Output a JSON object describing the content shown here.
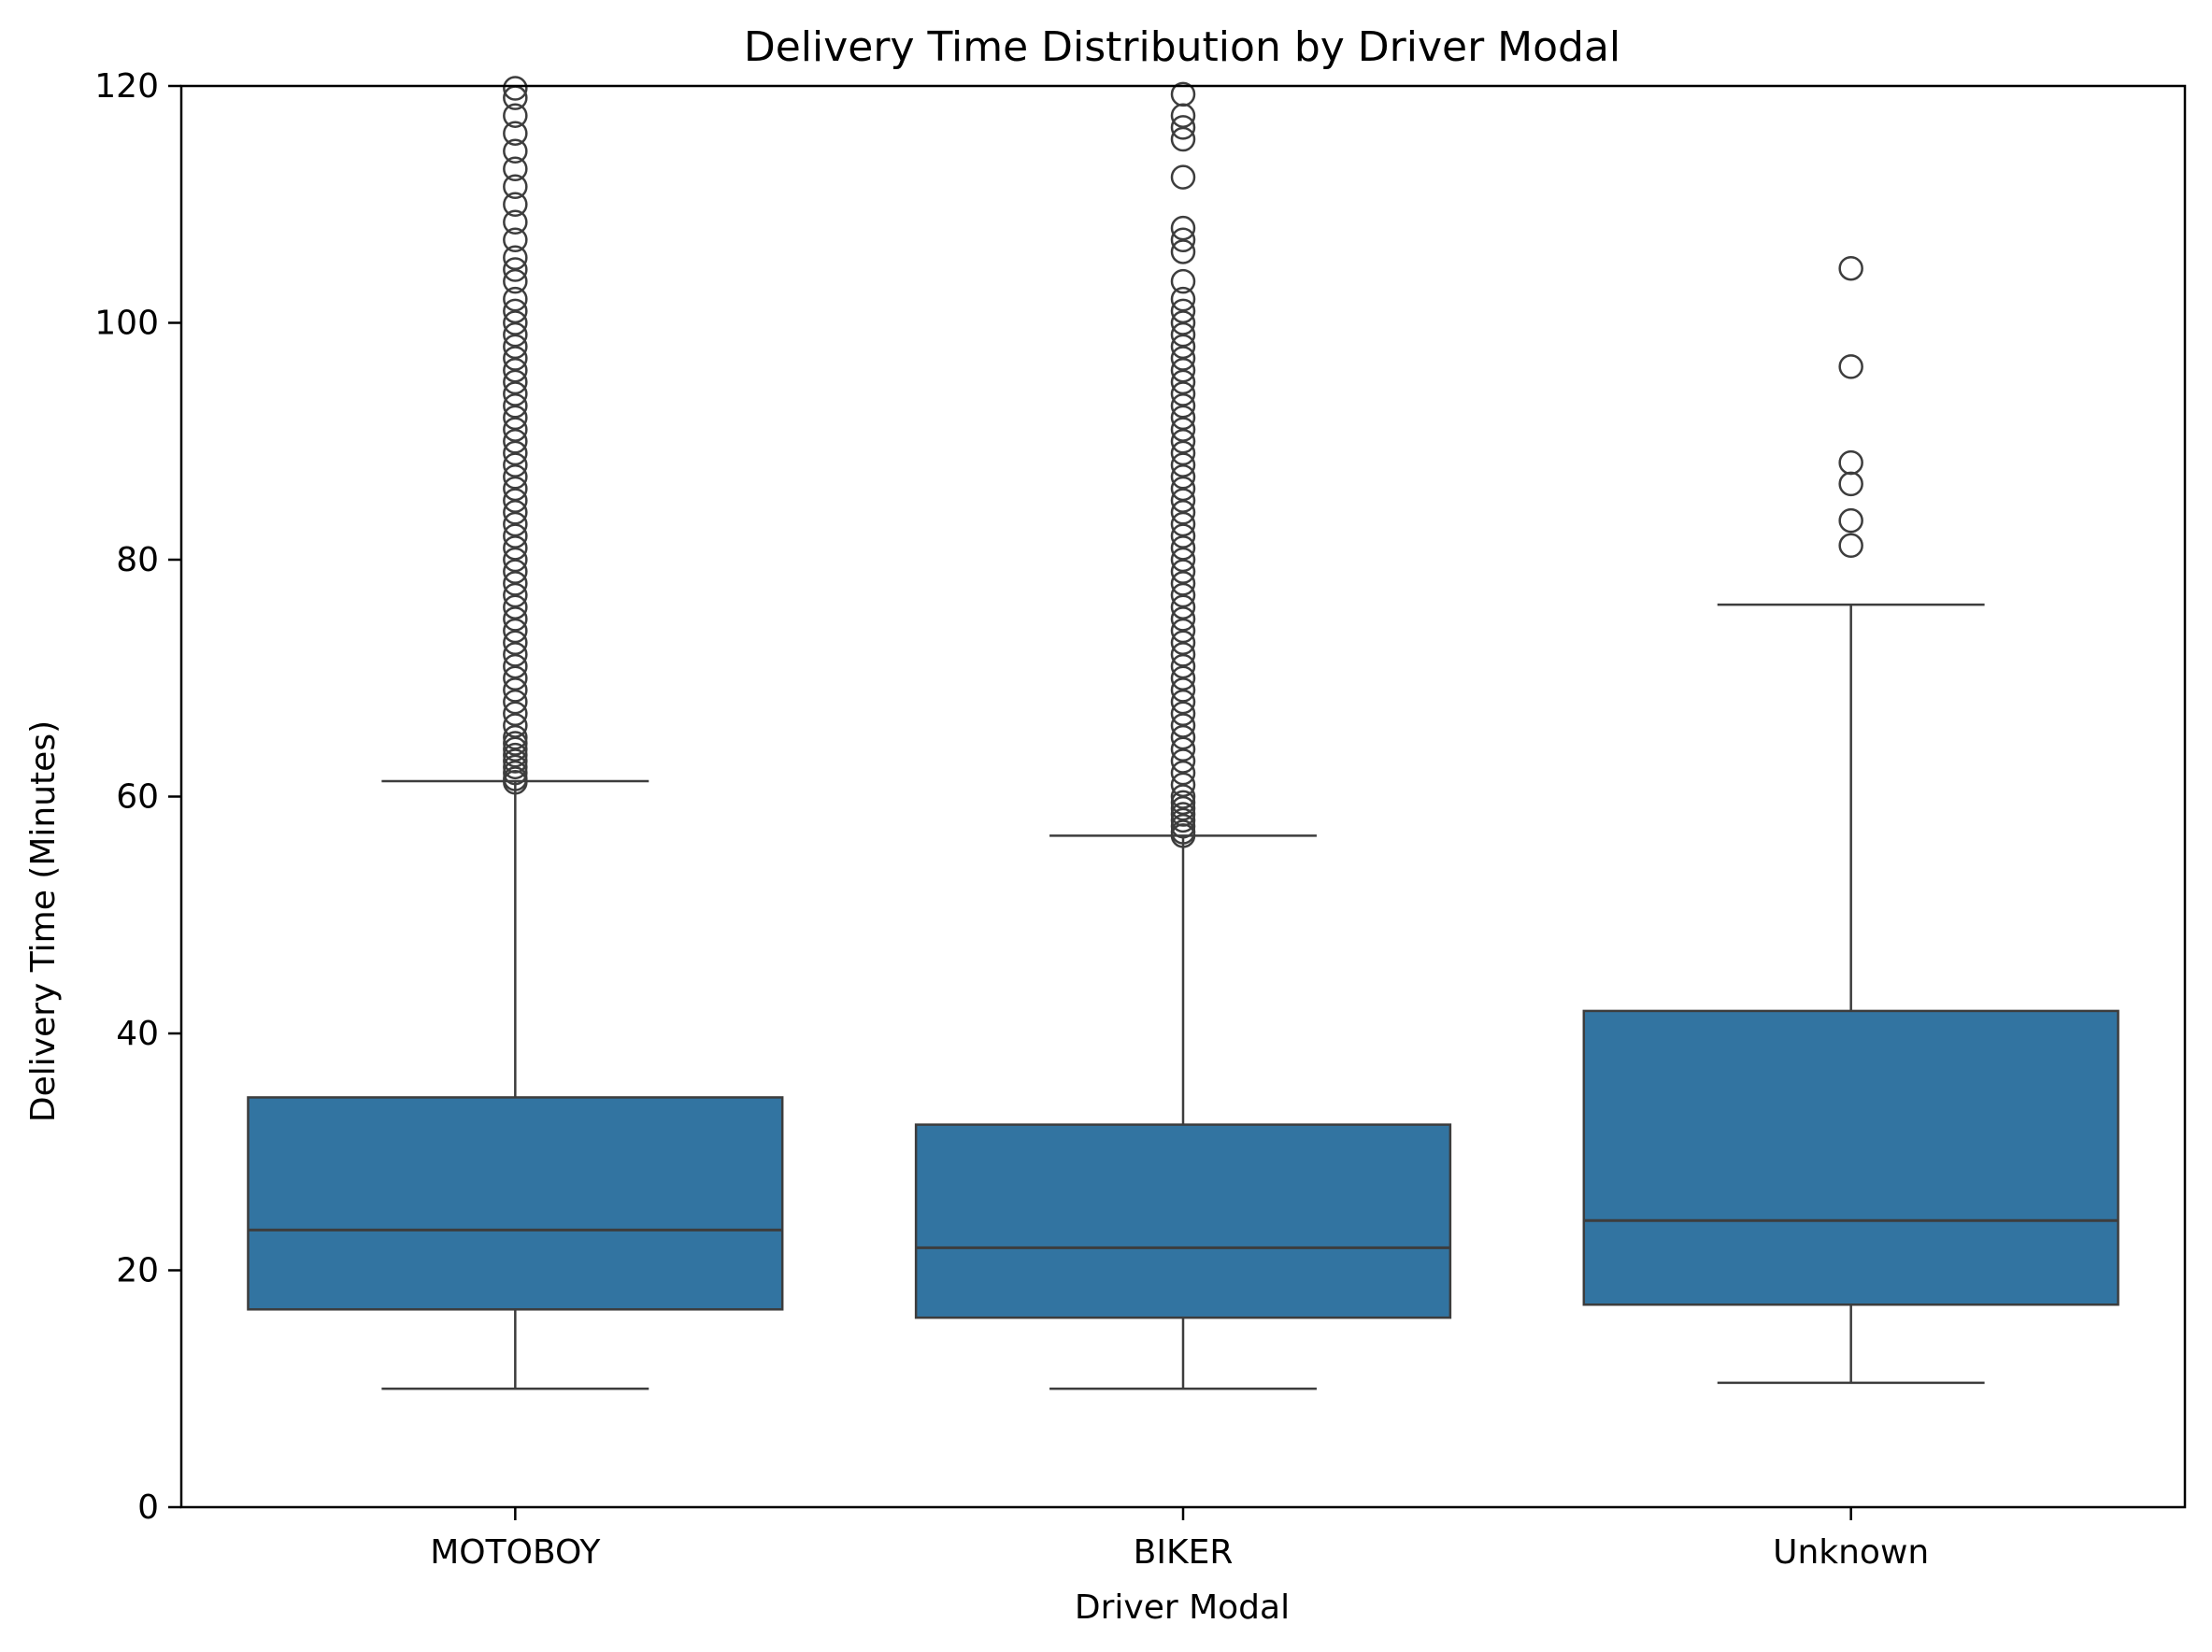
{
  "chart_data": {
    "type": "box",
    "title": "Delivery Time Distribution by Driver Modal",
    "xlabel": "Driver Modal",
    "ylabel": "Delivery Time (Minutes)",
    "ylim": [
      0,
      120
    ],
    "yticks": [
      0,
      20,
      40,
      60,
      80,
      100,
      120
    ],
    "grid": false,
    "legend": "none",
    "box_color": "#3274a1",
    "line_color": "#3d3d3d",
    "categories": [
      "MOTOBOY",
      "BIKER",
      "Unknown"
    ],
    "boxes": [
      {
        "category": "MOTOBOY",
        "whisker_low": 10.0,
        "q1": 16.7,
        "median": 23.4,
        "q3": 34.6,
        "whisker_high": 61.3,
        "outliers": [
          61.2,
          61.5,
          62,
          62.5,
          63,
          63.5,
          64,
          64.5,
          65,
          66,
          67,
          68,
          69,
          70,
          71,
          72,
          73,
          74,
          75,
          76,
          77,
          78,
          79,
          80,
          81,
          82,
          83,
          84,
          85,
          86,
          87,
          88,
          89,
          90,
          91,
          92,
          93,
          94,
          95,
          96,
          97,
          98,
          99,
          100,
          101,
          102,
          103.5,
          104.5,
          105.5,
          107,
          108.5,
          110,
          111.5,
          113,
          114.5,
          116,
          117.5,
          119,
          119.8
        ]
      },
      {
        "category": "BIKER",
        "whisker_low": 10.0,
        "q1": 16.0,
        "median": 21.9,
        "q3": 32.3,
        "whisker_high": 56.7,
        "outliers": [
          56.7,
          57,
          57.5,
          58,
          58.5,
          59,
          59.5,
          60,
          61,
          62,
          63,
          64,
          65,
          66,
          67,
          68,
          69,
          70,
          71,
          72,
          73,
          74,
          75,
          76,
          77,
          78,
          79,
          80,
          81,
          82,
          83,
          84,
          85,
          86,
          87,
          88,
          89,
          90,
          91,
          92,
          93,
          94,
          95,
          96,
          97,
          98,
          99,
          100,
          101,
          102,
          103.5,
          106,
          107,
          108,
          112.3,
          115.5,
          116.5,
          117.5,
          119.3
        ]
      },
      {
        "category": "Unknown",
        "whisker_low": 10.5,
        "q1": 17.1,
        "median": 24.2,
        "q3": 41.9,
        "whisker_high": 76.2,
        "outliers": [
          81.2,
          83.3,
          86.4,
          88.2,
          96.3,
          104.6
        ]
      }
    ]
  }
}
